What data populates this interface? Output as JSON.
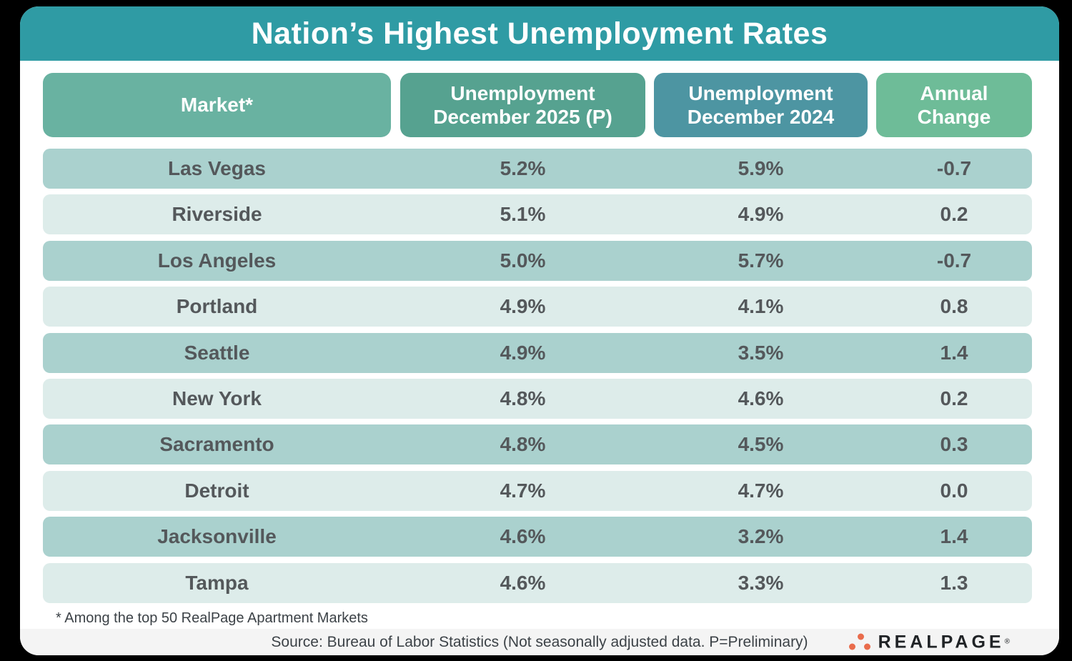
{
  "title": "Nation’s Highest Unemployment Rates",
  "header": {
    "market": "Market*",
    "col2025_line1": "Unemployment",
    "col2025_line2": "December 2025 (P)",
    "col2024_line1": "Unemployment",
    "col2024_line2": "December 2024",
    "change_line1": "Annual",
    "change_line2": "Change"
  },
  "chart_data": {
    "type": "table",
    "title": "Nation’s Highest Unemployment Rates",
    "columns": [
      "Market*",
      "Unemployment December 2025 (P)",
      "Unemployment December 2024",
      "Annual Change"
    ],
    "rows": [
      [
        "Las Vegas",
        "5.2%",
        "5.9%",
        "-0.7"
      ],
      [
        "Riverside",
        "5.1%",
        "4.9%",
        "0.2"
      ],
      [
        "Los Angeles",
        "5.0%",
        "5.7%",
        "-0.7"
      ],
      [
        "Portland",
        "4.9%",
        "4.1%",
        "0.8"
      ],
      [
        "Seattle",
        "4.9%",
        "3.5%",
        "1.4"
      ],
      [
        "New York",
        "4.8%",
        "4.6%",
        "0.2"
      ],
      [
        "Sacramento",
        "4.8%",
        "4.5%",
        "0.3"
      ],
      [
        "Detroit",
        "4.7%",
        "4.7%",
        "0.0"
      ],
      [
        "Jacksonville",
        "4.6%",
        "3.2%",
        "1.4"
      ],
      [
        "Tampa",
        "4.6%",
        "3.3%",
        "1.3"
      ]
    ]
  },
  "footnote": "* Among the top 50 RealPage Apartment Markets",
  "source": "Source: Bureau of Labor Statistics (Not seasonally adjusted data. P=Preliminary)",
  "logo": {
    "wordmark": "REALPAGE",
    "registered": "®"
  },
  "colors": {
    "title_bar": "#2f9ba4",
    "header_market": "#69b2a1",
    "header_2025": "#56a290",
    "header_2024": "#4d95a2",
    "header_change": "#6ebc98",
    "row_dark": "#aad1ce",
    "row_light": "#ddecea",
    "row_text": "#54585b",
    "source_bar": "#f4f4f4",
    "logo_orange": "#e96c4c",
    "logo_text": "#202326"
  }
}
